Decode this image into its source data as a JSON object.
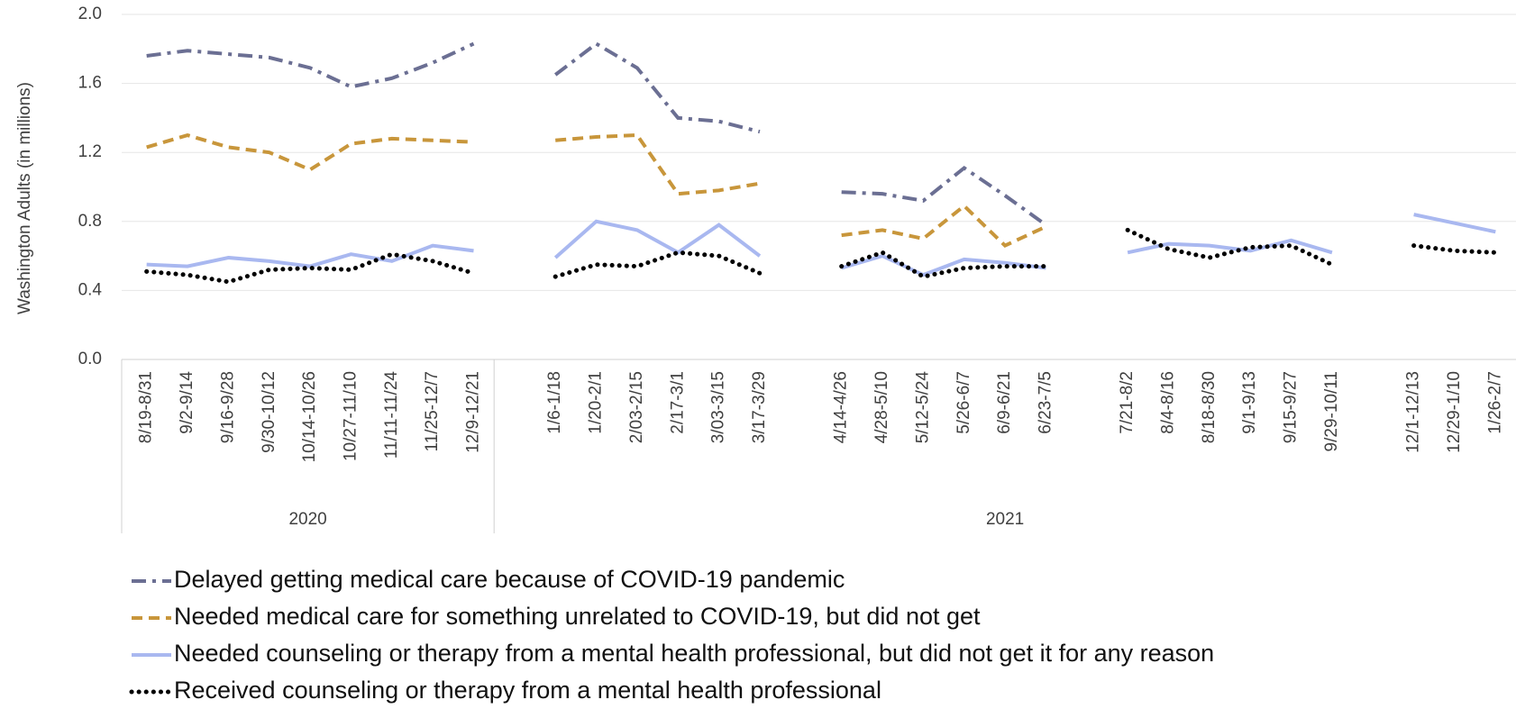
{
  "chart_data": {
    "type": "line",
    "y_label": "Washington Adults (in millions)",
    "categories": [
      "8/19-8/31",
      "9/2-9/14",
      "9/16-9/28",
      "9/30-10/12",
      "10/14-10/26",
      "10/27-11/10",
      "11/11-11/24",
      "11/25-12/7",
      "12/9-12/21",
      null,
      "1/6-1/18",
      "1/20-2/1",
      "2/03-2/15",
      "2/17-3/1",
      "3/03-3/15",
      "3/17-3/29",
      null,
      "4/14-4/26",
      "4/28-5/10",
      "5/12-5/24",
      "5/26-6/7",
      "6/9-6/21",
      "6/23-7/5",
      null,
      "7/21-8/2",
      "8/4-8/16",
      "8/18-8/30",
      "9/1-9/13",
      "9/15-9/27",
      "9/29-10/11",
      null,
      "12/1-12/13",
      "12/29-1/10",
      "1/26-2/7"
    ],
    "groups": [
      {
        "label": "2020",
        "size": 9
      },
      {
        "label": "2021",
        "size": 25
      }
    ],
    "series": [
      {
        "name": "Delayed getting medical care because of COVID-19 pandemic",
        "color": "#6b6f93",
        "dash": "dashdot",
        "values": [
          1.76,
          1.79,
          1.77,
          1.75,
          1.69,
          1.58,
          1.63,
          1.72,
          1.83,
          null,
          1.65,
          1.83,
          1.69,
          1.4,
          1.38,
          1.32,
          null,
          0.97,
          0.96,
          0.92,
          1.11,
          0.95,
          0.78,
          null,
          null,
          null,
          null,
          null,
          null,
          null,
          null,
          null,
          null,
          null
        ]
      },
      {
        "name": "Needed medical care for something unrelated to COVID-19, but did not get",
        "color": "#c8963b",
        "dash": "dash",
        "values": [
          1.23,
          1.3,
          1.23,
          1.2,
          1.1,
          1.25,
          1.28,
          1.27,
          1.26,
          null,
          1.27,
          1.29,
          1.3,
          0.96,
          0.98,
          1.02,
          null,
          0.72,
          0.75,
          0.7,
          0.89,
          0.66,
          0.77,
          null,
          null,
          null,
          null,
          null,
          null,
          null,
          null,
          null,
          null,
          null
        ]
      },
      {
        "name": "Needed counseling or therapy from a mental health professional, but did not get it for any reason",
        "color": "#a9b8f0",
        "dash": "solid",
        "values": [
          0.55,
          0.54,
          0.59,
          0.57,
          0.54,
          0.61,
          0.57,
          0.66,
          0.63,
          null,
          0.59,
          0.8,
          0.75,
          0.62,
          0.78,
          0.6,
          null,
          0.53,
          0.6,
          0.49,
          0.58,
          0.56,
          0.53,
          null,
          0.62,
          0.67,
          0.66,
          0.63,
          0.69,
          0.62,
          null,
          0.84,
          0.79,
          0.74
        ]
      },
      {
        "name": "Received counseling or therapy from a mental health professional",
        "color": "#000000",
        "dash": "dot",
        "values": [
          0.51,
          0.49,
          0.45,
          0.52,
          0.53,
          0.52,
          0.61,
          0.57,
          0.5,
          null,
          0.48,
          0.55,
          0.54,
          0.62,
          0.6,
          0.5,
          null,
          0.54,
          0.62,
          0.48,
          0.53,
          0.54,
          0.54,
          null,
          0.75,
          0.64,
          0.59,
          0.65,
          0.66,
          0.55,
          null,
          0.66,
          0.63,
          0.62
        ]
      }
    ],
    "ylim": [
      0,
      2.0
    ],
    "yticks": [
      {
        "value": 0,
        "label": "0.0"
      },
      0.4,
      0.8,
      1.2,
      1.6,
      {
        "value": 2.0,
        "label": "2.0"
      }
    ],
    "grid": true
  }
}
